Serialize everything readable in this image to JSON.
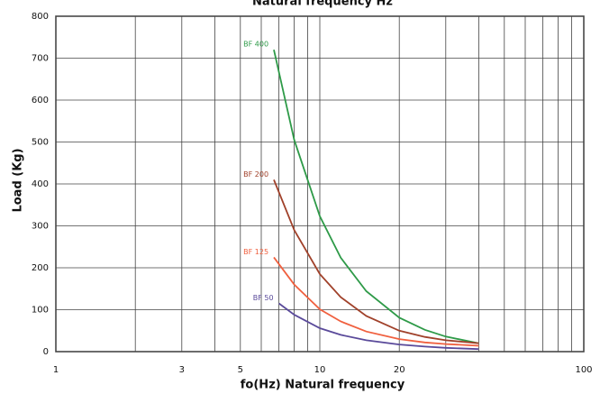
{
  "chart_data": {
    "type": "line",
    "title": "Natural frequency Hz",
    "x_label": "fo(Hz) Natural frequency",
    "y_label": "Load (Kg)",
    "x_scale": "log",
    "xlim": [
      1,
      100
    ],
    "xticks": [
      1,
      3,
      5,
      10,
      20,
      100
    ],
    "xminor_ticks": [
      2,
      4,
      6,
      7,
      8,
      9,
      30,
      40,
      50,
      60,
      70,
      80,
      90
    ],
    "ylim": [
      0,
      800
    ],
    "yticks": [
      0,
      100,
      200,
      300,
      400,
      500,
      600,
      700,
      800
    ],
    "grid": true,
    "series": [
      {
        "name": "BF 400",
        "color": "#2e9a48",
        "x": [
          6.7,
          8,
          10,
          12,
          15,
          20,
          25,
          30,
          40
        ],
        "values": [
          720,
          505,
          323,
          224,
          144,
          81,
          52,
          36,
          20
        ]
      },
      {
        "name": "BF 200",
        "color": "#a0412a",
        "x": [
          6.7,
          8,
          10,
          12,
          15,
          20,
          25,
          30,
          40
        ],
        "values": [
          410,
          290,
          185,
          130,
          85,
          50,
          35,
          27,
          20
        ]
      },
      {
        "name": "BF 125",
        "color": "#f0603f",
        "x": [
          6.7,
          8,
          10,
          12,
          15,
          20,
          25,
          30,
          40
        ],
        "values": [
          225,
          160,
          101,
          72,
          48,
          30,
          22,
          18,
          14
        ]
      },
      {
        "name": "BF 50",
        "color": "#5a4a9a",
        "x": [
          7,
          8,
          10,
          12,
          15,
          20,
          25,
          30,
          40
        ],
        "values": [
          115,
          88,
          56,
          40,
          27,
          17,
          12,
          9,
          6
        ]
      }
    ]
  }
}
